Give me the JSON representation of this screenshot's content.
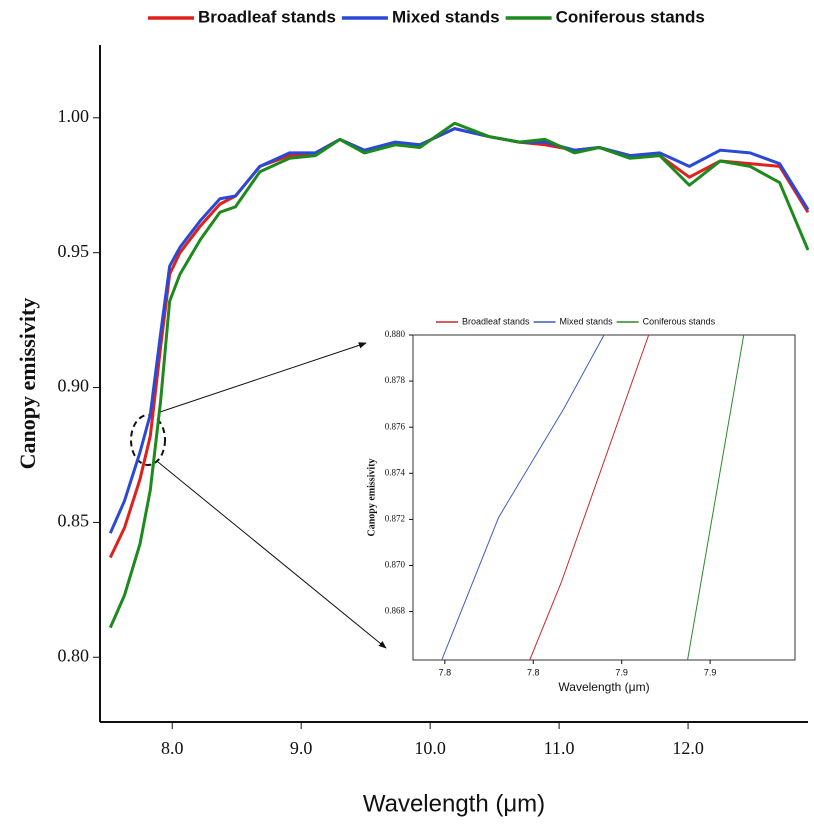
{
  "chart_data": [
    {
      "type": "line",
      "x_label": "Wavelength (μm)",
      "y_label": "Canopy emissivity",
      "x": [
        7.52,
        7.63,
        7.75,
        7.83,
        7.91,
        7.98,
        8.06,
        8.22,
        8.37,
        8.49,
        8.68,
        8.91,
        9.11,
        9.3,
        9.49,
        9.73,
        9.92,
        10.19,
        10.46,
        10.69,
        10.89,
        11.12,
        11.31,
        11.55,
        11.78,
        12.01,
        12.25,
        12.48,
        12.71,
        12.93
      ],
      "series": [
        {
          "name": "Broadleaf stands",
          "color": "#e0201c",
          "values": [
            0.837,
            0.848,
            0.866,
            0.882,
            0.915,
            0.942,
            0.95,
            0.96,
            0.968,
            0.971,
            0.982,
            0.986,
            0.987,
            0.992,
            0.988,
            0.99,
            0.99,
            0.996,
            0.993,
            0.991,
            0.99,
            0.988,
            0.989,
            0.986,
            0.986,
            0.978,
            0.984,
            0.983,
            0.982,
            0.965
          ]
        },
        {
          "name": "Mixed stands",
          "color": "#2a49d6",
          "values": [
            0.846,
            0.858,
            0.876,
            0.89,
            0.92,
            0.945,
            0.952,
            0.962,
            0.97,
            0.971,
            0.982,
            0.987,
            0.987,
            0.992,
            0.988,
            0.991,
            0.99,
            0.996,
            0.993,
            0.991,
            0.991,
            0.988,
            0.989,
            0.986,
            0.987,
            0.982,
            0.988,
            0.987,
            0.983,
            0.966
          ]
        },
        {
          "name": "Coniferous stands",
          "color": "#1c8a1c",
          "values": [
            0.811,
            0.823,
            0.842,
            0.862,
            0.895,
            0.932,
            0.942,
            0.955,
            0.965,
            0.967,
            0.98,
            0.985,
            0.986,
            0.992,
            0.987,
            0.99,
            0.989,
            0.998,
            0.993,
            0.991,
            0.992,
            0.987,
            0.989,
            0.985,
            0.986,
            0.975,
            0.984,
            0.982,
            0.976,
            0.951
          ]
        }
      ],
      "xlim": [
        7.44,
        12.93
      ],
      "xticks": [
        {
          "value": 8,
          "label": "8.0"
        },
        {
          "value": 9,
          "label": "9.0"
        },
        {
          "value": 10,
          "label": "10.0"
        },
        {
          "value": 11,
          "label": "11.0"
        },
        {
          "value": 12,
          "label": "12.0"
        }
      ],
      "ylim": [
        0.776,
        1.027
      ],
      "yticks": [
        {
          "value": 0.8,
          "label": "0.80"
        },
        0.85,
        {
          "value": 0.9,
          "label": "0.90"
        },
        0.95,
        {
          "value": 1,
          "label": "1.00"
        }
      ],
      "legend": "top"
    },
    {
      "type": "line",
      "x_label": "Wavelength (μm)",
      "y_label": "Canopy emissivity",
      "series": [
        {
          "name": "Broadleaf stands",
          "color": "#c8282a",
          "x": [
            7.8392,
            7.8464,
            7.8661
          ],
          "values": [
            0.8659,
            0.8693,
            0.88
          ]
        },
        {
          "name": "Mixed stands",
          "color": "#3a5ec0",
          "x": [
            7.8193,
            7.8322,
            7.8469,
            7.856
          ],
          "values": [
            0.8659,
            0.8721,
            0.8768,
            0.88
          ]
        },
        {
          "name": "Coniferous stands",
          "color": "#2a8a2a",
          "x": [
            7.8749,
            7.8876
          ],
          "values": [
            0.8659,
            0.88
          ]
        }
      ],
      "xlim": [
        7.8128,
        7.8992
      ],
      "xticks": [
        {
          "value": 7.82,
          "label": "7.8"
        },
        {
          "value": 7.84,
          "label": "7.8"
        },
        {
          "value": 7.86,
          "label": "7.9"
        },
        {
          "value": 7.88,
          "label": "7.9"
        }
      ],
      "ylim": [
        0.8659,
        0.88
      ],
      "yticks": [
        {
          "value": 0.868,
          "label": "0.868"
        },
        {
          "value": 0.87,
          "label": "0.870"
        },
        {
          "value": 0.872,
          "label": "0.872"
        },
        {
          "value": 0.874,
          "label": "0.874"
        },
        {
          "value": 0.876,
          "label": "0.876"
        },
        {
          "value": 0.878,
          "label": "0.878"
        },
        {
          "value": 0.88,
          "label": "0.880"
        }
      ],
      "legend": "top"
    }
  ]
}
